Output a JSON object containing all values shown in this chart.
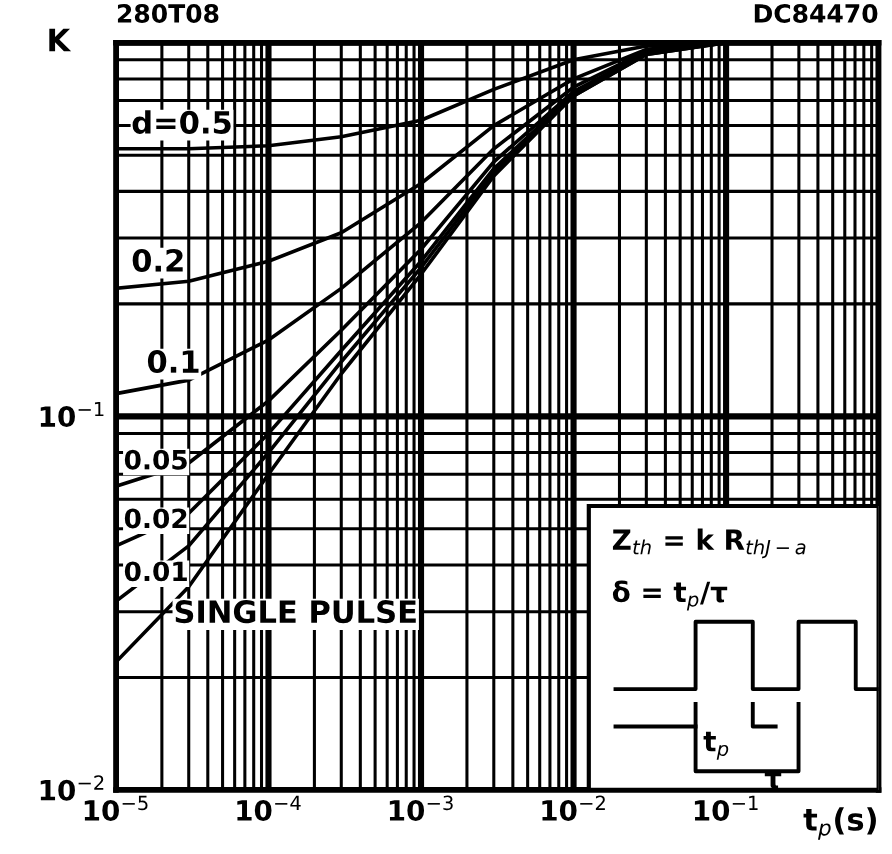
{
  "chart_data": {
    "type": "line",
    "xlabel": "t$_{p}$(s)",
    "ylabel": "K",
    "x": [
      1e-05,
      3e-05,
      0.0001,
      0.0003,
      0.001,
      0.003,
      0.01,
      0.03,
      0.1,
      1
    ],
    "series": [
      {
        "name": "d=0.5",
        "color": "#000000",
        "values": [
          0.52,
          0.52,
          0.53,
          0.56,
          0.62,
          0.75,
          0.9,
          0.98,
          1,
          1
        ]
      },
      {
        "name": "0.2",
        "color": "#000000",
        "values": [
          0.22,
          0.23,
          0.26,
          0.31,
          0.42,
          0.6,
          0.8,
          0.96,
          1,
          1
        ]
      },
      {
        "name": "0.1",
        "color": "#000000",
        "values": [
          0.115,
          0.125,
          0.16,
          0.22,
          0.33,
          0.52,
          0.76,
          0.95,
          1,
          1
        ]
      },
      {
        "name": "0.05",
        "color": "#000000",
        "values": [
          0.065,
          0.075,
          0.11,
          0.17,
          0.28,
          0.48,
          0.74,
          0.94,
          1,
          1
        ]
      },
      {
        "name": "0.02",
        "color": "#000000",
        "values": [
          0.045,
          0.055,
          0.09,
          0.15,
          0.26,
          0.46,
          0.73,
          0.94,
          1,
          1
        ]
      },
      {
        "name": "0.01",
        "color": "#000000",
        "values": [
          0.032,
          0.045,
          0.08,
          0.14,
          0.25,
          0.45,
          0.72,
          0.93,
          1,
          1
        ]
      },
      {
        "name": "SINGLE PULSE",
        "color": "#000000",
        "values": [
          0.022,
          0.035,
          0.07,
          0.13,
          0.24,
          0.44,
          0.72,
          0.93,
          1,
          1
        ]
      }
    ],
    "xlim": [
      1e-05,
      1
    ],
    "ylim": [
      0.01,
      1
    ],
    "log": "xy",
    "xticks": [
      {
        "value": 1e-05,
        "label": "10$^{−5}$"
      },
      {
        "value": 0.0001,
        "label": "10$^{−4}$"
      },
      {
        "value": 0.001,
        "label": "10$^{−3}$"
      },
      {
        "value": 0.01,
        "label": "10$^{−2}$"
      },
      {
        "value": 0.1,
        "label": "10$^{−1}$"
      },
      {
        "value": 1,
        "label": null
      }
    ],
    "yticks": [
      {
        "value": 0.01,
        "label": "10$^{−2}$"
      },
      {
        "value": 0.1,
        "label": "10$^{−1}$"
      },
      {
        "value": 1,
        "label": null
      }
    ],
    "grid": true,
    "marker": "none",
    "line_style": "solid",
    "legend": false,
    "annotations": [
      "280T08",
      "DC84470",
      "Z$_{th}$ = k R$_{thJ−a}$",
      "δ = t$_{p}$/τ",
      "t$_{p}$",
      "τ"
    ]
  }
}
